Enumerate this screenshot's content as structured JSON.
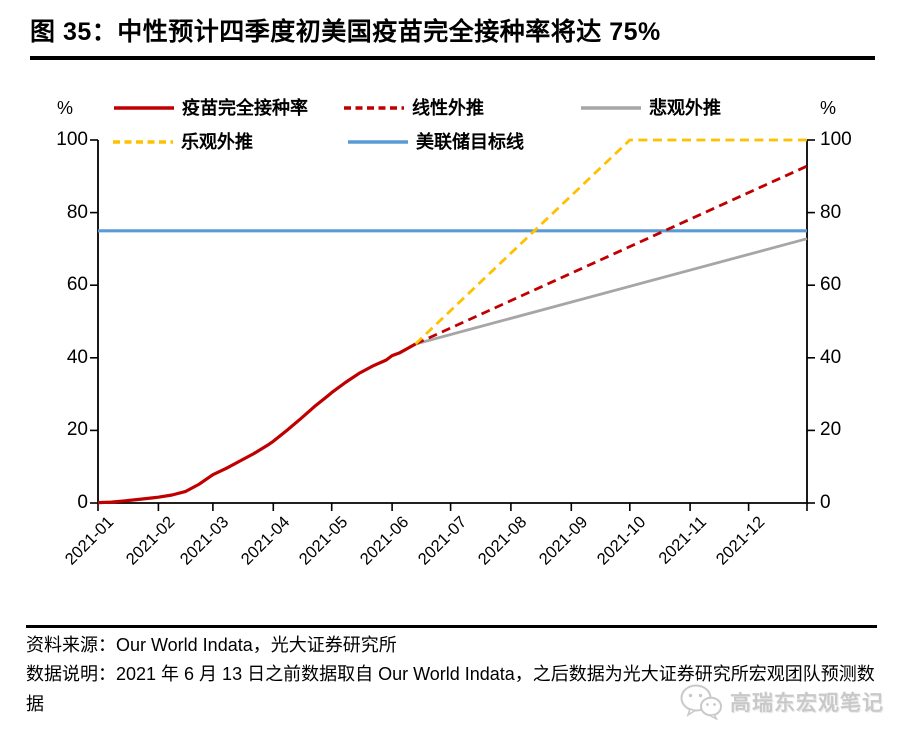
{
  "figure": {
    "title": "图 35：中性预计四季度初美国疫苗完全接种率将达 75%",
    "source": "资料来源：Our World Indata，光大证券研究所",
    "note": "数据说明：2021 年 6 月 13 日之前数据取自 Our World Indata，之后数据为光大证券研究所宏观团队预测数据",
    "watermark": "高瑞东宏观笔记"
  },
  "chart_data": {
    "type": "line",
    "title": "中性预计四季度初美国疫苗完全接种率将达 75%",
    "y_unit": "%",
    "xlabel": "",
    "ylabel": "%",
    "grid": false,
    "legend_position": "top",
    "x_domain_days": [
      0,
      364
    ],
    "y_domain": [
      0,
      100
    ],
    "y_ticks": [
      0,
      20,
      40,
      60,
      80,
      100
    ],
    "x_tick_labels": [
      "2021-01",
      "2021-02",
      "2021-03",
      "2021-04",
      "2021-05",
      "2021-06",
      "2021-07",
      "2021-08",
      "2021-09",
      "2021-10",
      "2021-11",
      "2021-12"
    ],
    "x_tick_days": [
      0,
      31,
      59,
      90,
      120,
      151,
      181,
      212,
      243,
      273,
      304,
      334
    ],
    "series": [
      {
        "name": "疫苗完全接种率",
        "color": "#C00000",
        "dash": "solid",
        "width": 3.2,
        "points": [
          [
            0,
            0.1
          ],
          [
            7,
            0.25
          ],
          [
            14,
            0.6
          ],
          [
            21,
            1.0
          ],
          [
            28,
            1.4
          ],
          [
            31,
            1.6
          ],
          [
            38,
            2.2
          ],
          [
            45,
            3.2
          ],
          [
            52,
            5.2
          ],
          [
            59,
            7.8
          ],
          [
            66,
            9.6
          ],
          [
            73,
            11.6
          ],
          [
            80,
            13.6
          ],
          [
            87,
            15.9
          ],
          [
            90,
            17.0
          ],
          [
            97,
            20.0
          ],
          [
            104,
            23.2
          ],
          [
            111,
            26.5
          ],
          [
            118,
            29.5
          ],
          [
            120,
            30.4
          ],
          [
            127,
            33.2
          ],
          [
            134,
            35.7
          ],
          [
            141,
            37.7
          ],
          [
            148,
            39.4
          ],
          [
            151,
            40.6
          ],
          [
            155,
            41.4
          ],
          [
            159,
            42.6
          ],
          [
            163,
            43.8
          ]
        ]
      },
      {
        "name": "线性外推",
        "color": "#C00000",
        "dash": "dashed",
        "width": 2.8,
        "points": [
          [
            163,
            43.8
          ],
          [
            364,
            92.8
          ]
        ]
      },
      {
        "name": "悲观外推",
        "color": "#A6A6A6",
        "dash": "solid",
        "width": 2.8,
        "points": [
          [
            163,
            43.8
          ],
          [
            364,
            72.8
          ]
        ]
      },
      {
        "name": "乐观外推",
        "color": "#FFC000",
        "dash": "dashed",
        "width": 2.8,
        "points": [
          [
            163,
            43.8
          ],
          [
            273,
            100
          ],
          [
            364,
            100
          ]
        ]
      },
      {
        "name": "美联储目标线",
        "color": "#5B9BD5",
        "dash": "solid",
        "width": 3.2,
        "points": [
          [
            0,
            75
          ],
          [
            364,
            75
          ]
        ]
      }
    ]
  }
}
